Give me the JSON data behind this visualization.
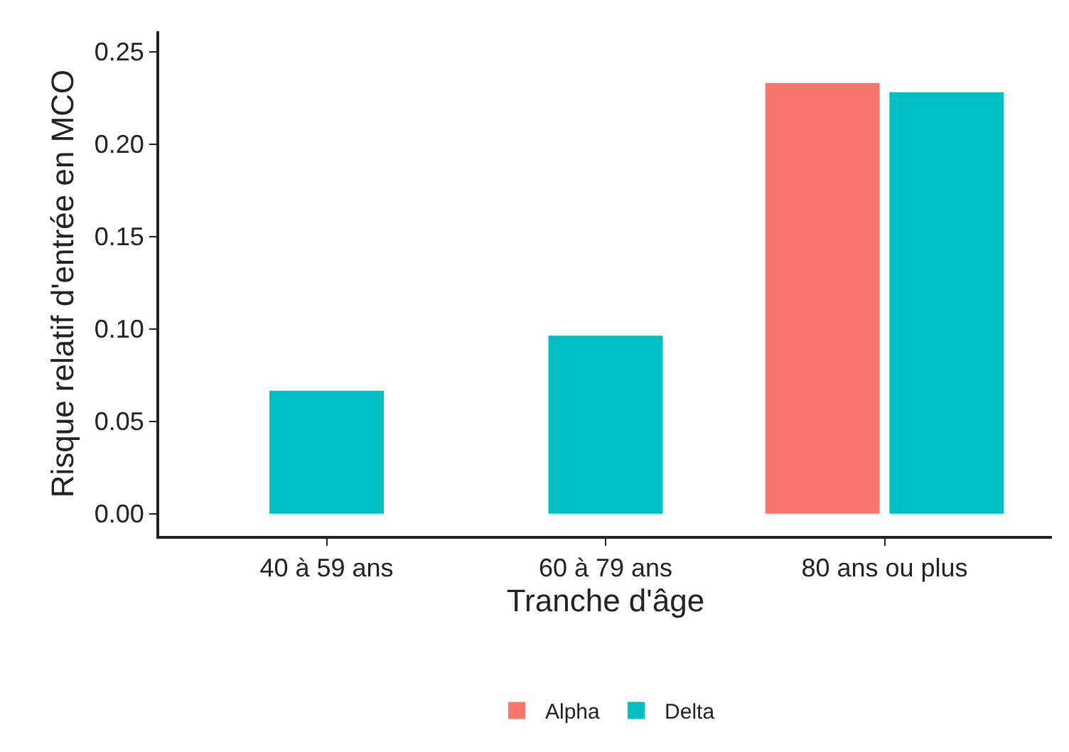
{
  "chart_data": {
    "type": "bar",
    "xlabel": "Tranche d'âge",
    "ylabel": "Risque relatif d'entrée en MCO",
    "categories": [
      "40 à 59 ans",
      "60 à 79 ans",
      "80 ans ou plus"
    ],
    "series": [
      {
        "name": "Alpha",
        "color": "#f8766d",
        "values": [
          null,
          null,
          0.233
        ]
      },
      {
        "name": "Delta",
        "color": "#00bfc4",
        "values": [
          0.0665,
          0.0963,
          0.228
        ]
      }
    ],
    "ylim": [
      -0.012,
      0.261
    ],
    "yticks": [
      {
        "value": 0,
        "label": "0.00"
      },
      {
        "value": 0.05,
        "label": "0.05"
      },
      {
        "value": 0.1,
        "label": "0.10"
      },
      {
        "value": 0.15,
        "label": "0.15"
      },
      {
        "value": 0.2,
        "label": "0.20"
      },
      {
        "value": 0.25,
        "label": "0.25"
      }
    ],
    "grid": false,
    "legend": "bottom"
  }
}
